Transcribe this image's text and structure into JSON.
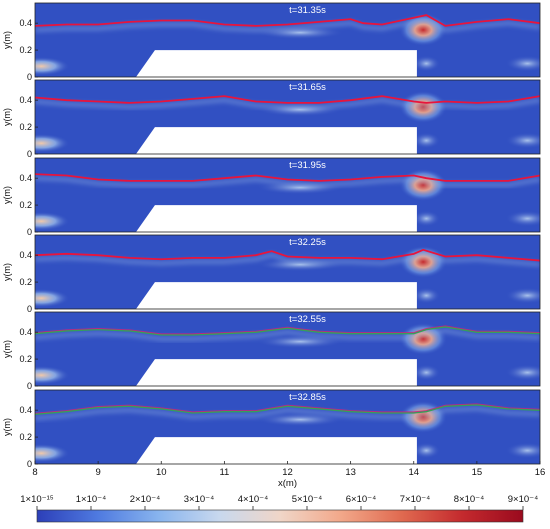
{
  "chart_data": {
    "type": "heatmap",
    "panels": [
      {
        "title": "t=31.35s",
        "surface_x": [
          8,
          8.5,
          9,
          9.5,
          10,
          10.5,
          11,
          11.5,
          12,
          12.5,
          13,
          13.2,
          13.5,
          14,
          14.2,
          14.5,
          15,
          15.5,
          16
        ],
        "surface_y": [
          0.38,
          0.39,
          0.39,
          0.41,
          0.42,
          0.42,
          0.39,
          0.38,
          0.39,
          0.41,
          0.43,
          0.4,
          0.39,
          0.44,
          0.46,
          0.38,
          0.41,
          0.43,
          0.4
        ]
      },
      {
        "title": "t=31.65s",
        "surface_x": [
          8,
          8.5,
          9,
          9.5,
          10,
          10.5,
          11,
          11.5,
          12,
          12.5,
          13,
          13.5,
          14,
          14.2,
          14.5,
          15,
          15.5,
          16
        ],
        "surface_y": [
          0.42,
          0.4,
          0.39,
          0.38,
          0.39,
          0.41,
          0.43,
          0.39,
          0.38,
          0.38,
          0.4,
          0.43,
          0.39,
          0.38,
          0.39,
          0.38,
          0.39,
          0.43
        ]
      },
      {
        "title": "t=31.95s",
        "surface_x": [
          8,
          8.5,
          9,
          9.5,
          10,
          10.5,
          11,
          11.5,
          12,
          12.5,
          13,
          13.5,
          14,
          14.2,
          14.5,
          15,
          15.5,
          16
        ],
        "surface_y": [
          0.43,
          0.42,
          0.39,
          0.38,
          0.38,
          0.38,
          0.4,
          0.42,
          0.39,
          0.38,
          0.39,
          0.41,
          0.42,
          0.4,
          0.38,
          0.38,
          0.38,
          0.42
        ]
      },
      {
        "title": "t=32.25s",
        "surface_x": [
          8,
          8.5,
          9,
          9.5,
          10,
          10.5,
          11,
          11.5,
          11.75,
          12,
          12.5,
          13,
          13.5,
          14,
          14.15,
          14.5,
          15,
          15.5,
          16
        ],
        "surface_y": [
          0.4,
          0.41,
          0.4,
          0.38,
          0.37,
          0.38,
          0.38,
          0.4,
          0.43,
          0.39,
          0.38,
          0.38,
          0.37,
          0.41,
          0.44,
          0.39,
          0.4,
          0.38,
          0.36
        ]
      },
      {
        "title": "t=32.55s",
        "surface_x": [
          8,
          8.5,
          9,
          9.5,
          10,
          10.5,
          11,
          11.5,
          12,
          12.5,
          13,
          13.5,
          14,
          14.2,
          14.5,
          15,
          15.5,
          16
        ],
        "surface_y": [
          0.39,
          0.41,
          0.42,
          0.41,
          0.38,
          0.38,
          0.39,
          0.4,
          0.43,
          0.4,
          0.39,
          0.39,
          0.39,
          0.42,
          0.44,
          0.4,
          0.4,
          0.39
        ]
      },
      {
        "title": "t=32.85s",
        "surface_x": [
          8,
          8.5,
          9,
          9.5,
          10,
          10.5,
          11,
          11.5,
          12,
          12.5,
          13,
          13.5,
          14,
          14.2,
          14.5,
          15,
          15.5,
          16
        ],
        "surface_y": [
          0.37,
          0.39,
          0.42,
          0.43,
          0.41,
          0.38,
          0.39,
          0.39,
          0.43,
          0.41,
          0.39,
          0.38,
          0.38,
          0.39,
          0.43,
          0.44,
          0.41,
          0.4
        ]
      }
    ],
    "obstacle": {
      "x_start": 9.6,
      "x_end": 14.05,
      "y_top": 0.2,
      "slope_x": 0.3
    },
    "hotspots": [
      {
        "x": 14.15,
        "y": 0.35,
        "rx": 0.38,
        "ry": 0.12,
        "intensity": 0.55
      },
      {
        "x": 8.1,
        "y": 0.08,
        "rx": 0.45,
        "ry": 0.07,
        "intensity": 0.45
      },
      {
        "x": 15.8,
        "y": 0.1,
        "rx": 0.35,
        "ry": 0.06,
        "intensity": 0.25
      },
      {
        "x": 14.2,
        "y": 0.1,
        "rx": 0.22,
        "ry": 0.06,
        "intensity": 0.25
      },
      {
        "x": 12.2,
        "y": 0.33,
        "rx": 0.7,
        "ry": 0.05,
        "intensity": 0.2
      }
    ],
    "xlabel": "x(m)",
    "ylabel": "y(m)",
    "xlim": [
      8,
      16
    ],
    "ylim": [
      0,
      0.55
    ],
    "xticks": [
      "8",
      "9",
      "10",
      "11",
      "12",
      "13",
      "14",
      "15",
      "16"
    ],
    "xtick_values": [
      8,
      9,
      10,
      11,
      12,
      13,
      14,
      15,
      16
    ],
    "yticks": [
      "0",
      "0.2",
      "0.4"
    ],
    "ytick_values": [
      0,
      0.2,
      0.4
    ],
    "colorbar": {
      "ticks": [
        "1×10⁻¹⁵",
        "1×10⁻⁴",
        "2×10⁻⁴",
        "3×10⁻⁴",
        "4×10⁻⁴",
        "5×10⁻⁴",
        "6×10⁻⁴",
        "7×10⁻⁴",
        "8×10⁻⁴",
        "9×10⁻⁴"
      ],
      "stops": [
        "#2c3fb8",
        "#4f7ae0",
        "#88b4ee",
        "#c8d8ee",
        "#f0d6c8",
        "#f2a88a",
        "#e06a50",
        "#c42a2e",
        "#9a0a1e"
      ]
    },
    "colors": {
      "water": "#3150c2",
      "surface_red": "#e8143c",
      "surface_green": "#35a05a",
      "obstacle": "#ffffff"
    },
    "grid": false
  }
}
